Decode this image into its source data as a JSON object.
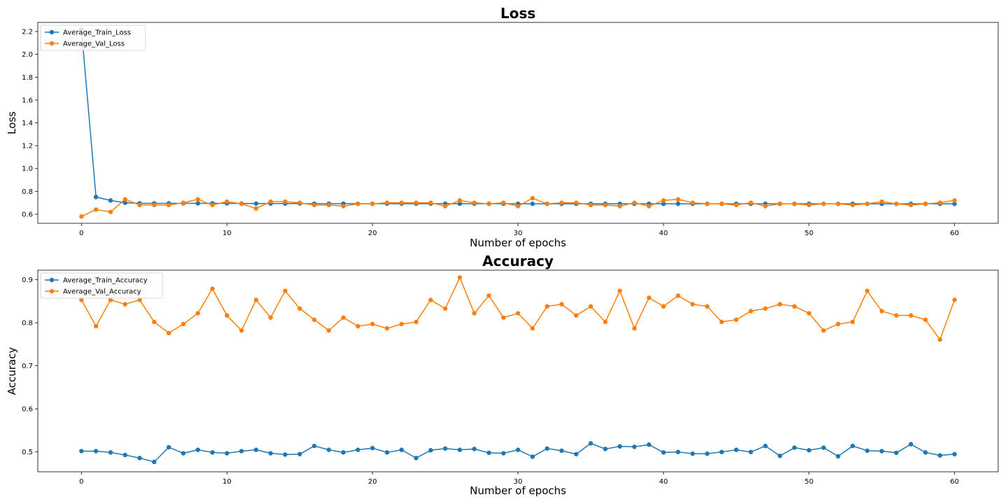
{
  "chart_data": [
    {
      "type": "line",
      "title": "Loss",
      "xlabel": "Number of epochs",
      "ylabel": "Loss",
      "xlim": [
        -3,
        63
      ],
      "ylim": [
        0.52,
        2.28
      ],
      "xticks": [
        0,
        10,
        20,
        30,
        40,
        50,
        60
      ],
      "yticks": [
        0.6,
        0.8,
        1.0,
        1.2,
        1.4,
        1.6,
        1.8,
        2.0,
        2.2
      ],
      "ytick_labels": [
        "0.6",
        "0.8",
        "1.0",
        "1.2",
        "1.4",
        "1.6",
        "1.8",
        "2.0",
        "2.2"
      ],
      "legend_position": "top-left",
      "grid": false,
      "x": [
        0,
        1,
        2,
        3,
        4,
        5,
        6,
        7,
        8,
        9,
        10,
        11,
        12,
        13,
        14,
        15,
        16,
        17,
        18,
        19,
        20,
        21,
        22,
        23,
        24,
        25,
        26,
        27,
        28,
        29,
        30,
        31,
        32,
        33,
        34,
        35,
        36,
        37,
        38,
        39,
        40,
        41,
        42,
        43,
        44,
        45,
        46,
        47,
        48,
        49,
        50,
        51,
        52,
        53,
        54,
        55,
        56,
        57,
        58,
        59,
        60
      ],
      "series": [
        {
          "name": "Average_Train_Loss",
          "color": "#1f77b4",
          "values": [
            2.22,
            0.75,
            0.72,
            0.7,
            0.695,
            0.695,
            0.695,
            0.695,
            0.695,
            0.695,
            0.695,
            0.693,
            0.693,
            0.693,
            0.693,
            0.693,
            0.692,
            0.692,
            0.692,
            0.692,
            0.692,
            0.692,
            0.692,
            0.692,
            0.692,
            0.692,
            0.692,
            0.692,
            0.692,
            0.692,
            0.691,
            0.691,
            0.691,
            0.691,
            0.691,
            0.691,
            0.691,
            0.691,
            0.691,
            0.691,
            0.691,
            0.691,
            0.691,
            0.691,
            0.691,
            0.691,
            0.691,
            0.691,
            0.691,
            0.691,
            0.691,
            0.691,
            0.691,
            0.691,
            0.691,
            0.691,
            0.691,
            0.691,
            0.691,
            0.691,
            0.691
          ]
        },
        {
          "name": "Average_Val_Loss",
          "color": "#ff7f0e",
          "values": [
            0.58,
            0.64,
            0.62,
            0.73,
            0.68,
            0.68,
            0.68,
            0.7,
            0.73,
            0.68,
            0.71,
            0.69,
            0.65,
            0.71,
            0.71,
            0.7,
            0.68,
            0.68,
            0.67,
            0.69,
            0.69,
            0.7,
            0.7,
            0.7,
            0.7,
            0.67,
            0.72,
            0.7,
            0.69,
            0.7,
            0.67,
            0.74,
            0.69,
            0.7,
            0.7,
            0.68,
            0.68,
            0.67,
            0.7,
            0.67,
            0.72,
            0.73,
            0.7,
            0.69,
            0.69,
            0.68,
            0.7,
            0.67,
            0.69,
            0.69,
            0.68,
            0.69,
            0.69,
            0.68,
            0.69,
            0.71,
            0.69,
            0.68,
            0.69,
            0.7,
            0.72
          ]
        }
      ]
    },
    {
      "type": "line",
      "title": "Accuracy",
      "xlabel": "Number of epochs",
      "ylabel": "Accuracy",
      "xlim": [
        -3,
        63
      ],
      "ylim": [
        0.454,
        0.922
      ],
      "xticks": [
        0,
        10,
        20,
        30,
        40,
        50,
        60
      ],
      "yticks": [
        0.5,
        0.6,
        0.7,
        0.8,
        0.9
      ],
      "ytick_labels": [
        "0.5",
        "0.6",
        "0.7",
        "0.8",
        "0.9"
      ],
      "legend_position": "top-left",
      "grid": false,
      "x": [
        0,
        1,
        2,
        3,
        4,
        5,
        6,
        7,
        8,
        9,
        10,
        11,
        12,
        13,
        14,
        15,
        16,
        17,
        18,
        19,
        20,
        21,
        22,
        23,
        24,
        25,
        26,
        27,
        28,
        29,
        30,
        31,
        32,
        33,
        34,
        35,
        36,
        37,
        38,
        39,
        40,
        41,
        42,
        43,
        44,
        45,
        46,
        47,
        48,
        49,
        50,
        51,
        52,
        53,
        54,
        55,
        56,
        57,
        58,
        59,
        60
      ],
      "series": [
        {
          "name": "Average_Train_Accuracy",
          "color": "#1f77b4",
          "values": [
            0.502,
            0.502,
            0.499,
            0.493,
            0.486,
            0.477,
            0.511,
            0.497,
            0.505,
            0.499,
            0.497,
            0.502,
            0.505,
            0.497,
            0.494,
            0.495,
            0.514,
            0.505,
            0.499,
            0.505,
            0.509,
            0.499,
            0.505,
            0.486,
            0.504,
            0.508,
            0.505,
            0.507,
            0.498,
            0.497,
            0.505,
            0.489,
            0.508,
            0.503,
            0.495,
            0.52,
            0.507,
            0.513,
            0.512,
            0.517,
            0.499,
            0.5,
            0.496,
            0.496,
            0.5,
            0.505,
            0.5,
            0.514,
            0.491,
            0.51,
            0.504,
            0.51,
            0.49,
            0.514,
            0.503,
            0.502,
            0.498,
            0.518,
            0.499,
            0.492,
            0.495
          ]
        },
        {
          "name": "Average_Val_Accuracy",
          "color": "#ff7f0e",
          "values": [
            0.853,
            0.792,
            0.853,
            0.843,
            0.853,
            0.802,
            0.776,
            0.797,
            0.822,
            0.879,
            0.817,
            0.782,
            0.853,
            0.812,
            0.874,
            0.833,
            0.807,
            0.782,
            0.812,
            0.792,
            0.797,
            0.787,
            0.797,
            0.802,
            0.853,
            0.833,
            0.905,
            0.822,
            0.863,
            0.812,
            0.822,
            0.787,
            0.838,
            0.843,
            0.817,
            0.838,
            0.802,
            0.874,
            0.787,
            0.858,
            0.838,
            0.863,
            0.843,
            0.838,
            0.802,
            0.807,
            0.827,
            0.833,
            0.843,
            0.838,
            0.822,
            0.782,
            0.797,
            0.802,
            0.874,
            0.827,
            0.817,
            0.817,
            0.807,
            0.761,
            0.853
          ]
        }
      ]
    }
  ]
}
